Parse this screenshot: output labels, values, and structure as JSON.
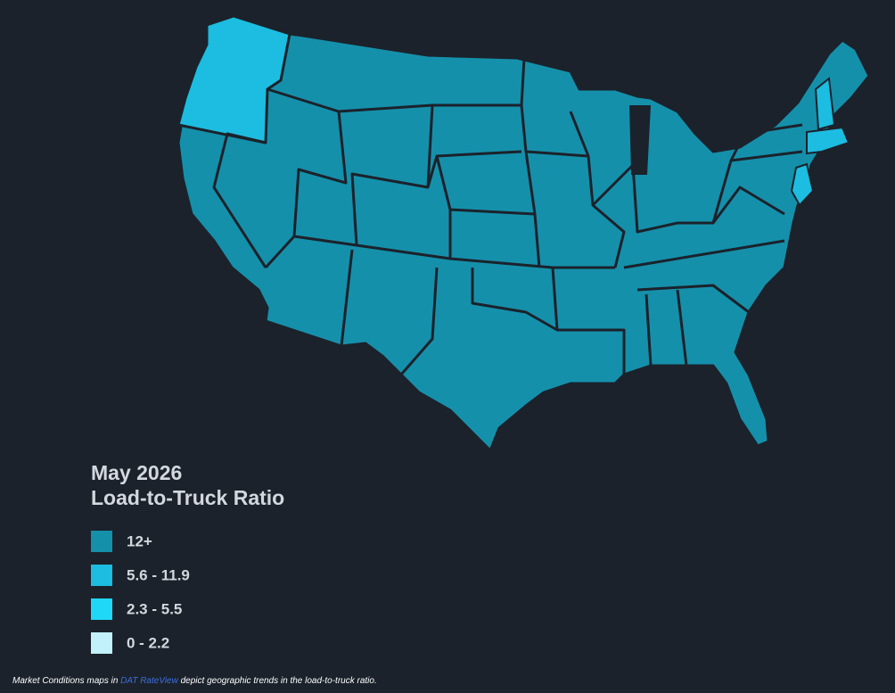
{
  "title": "May 2026",
  "subtitle": "Load-to-Truck Ratio",
  "legend": {
    "items": [
      {
        "label": "12+",
        "color": "#1590ab"
      },
      {
        "label": "5.6 - 11.9",
        "color": "#1cbde0"
      },
      {
        "label": "2.3 - 5.5",
        "color": "#1fd8f7"
      },
      {
        "label": "0 - 2.2",
        "color": "#c2f1fb"
      }
    ]
  },
  "footnote": {
    "before": "Market Conditions maps in ",
    "link": "DAT RateView",
    "after": " depict geographic trends in the load-to-truck ratio."
  }
}
